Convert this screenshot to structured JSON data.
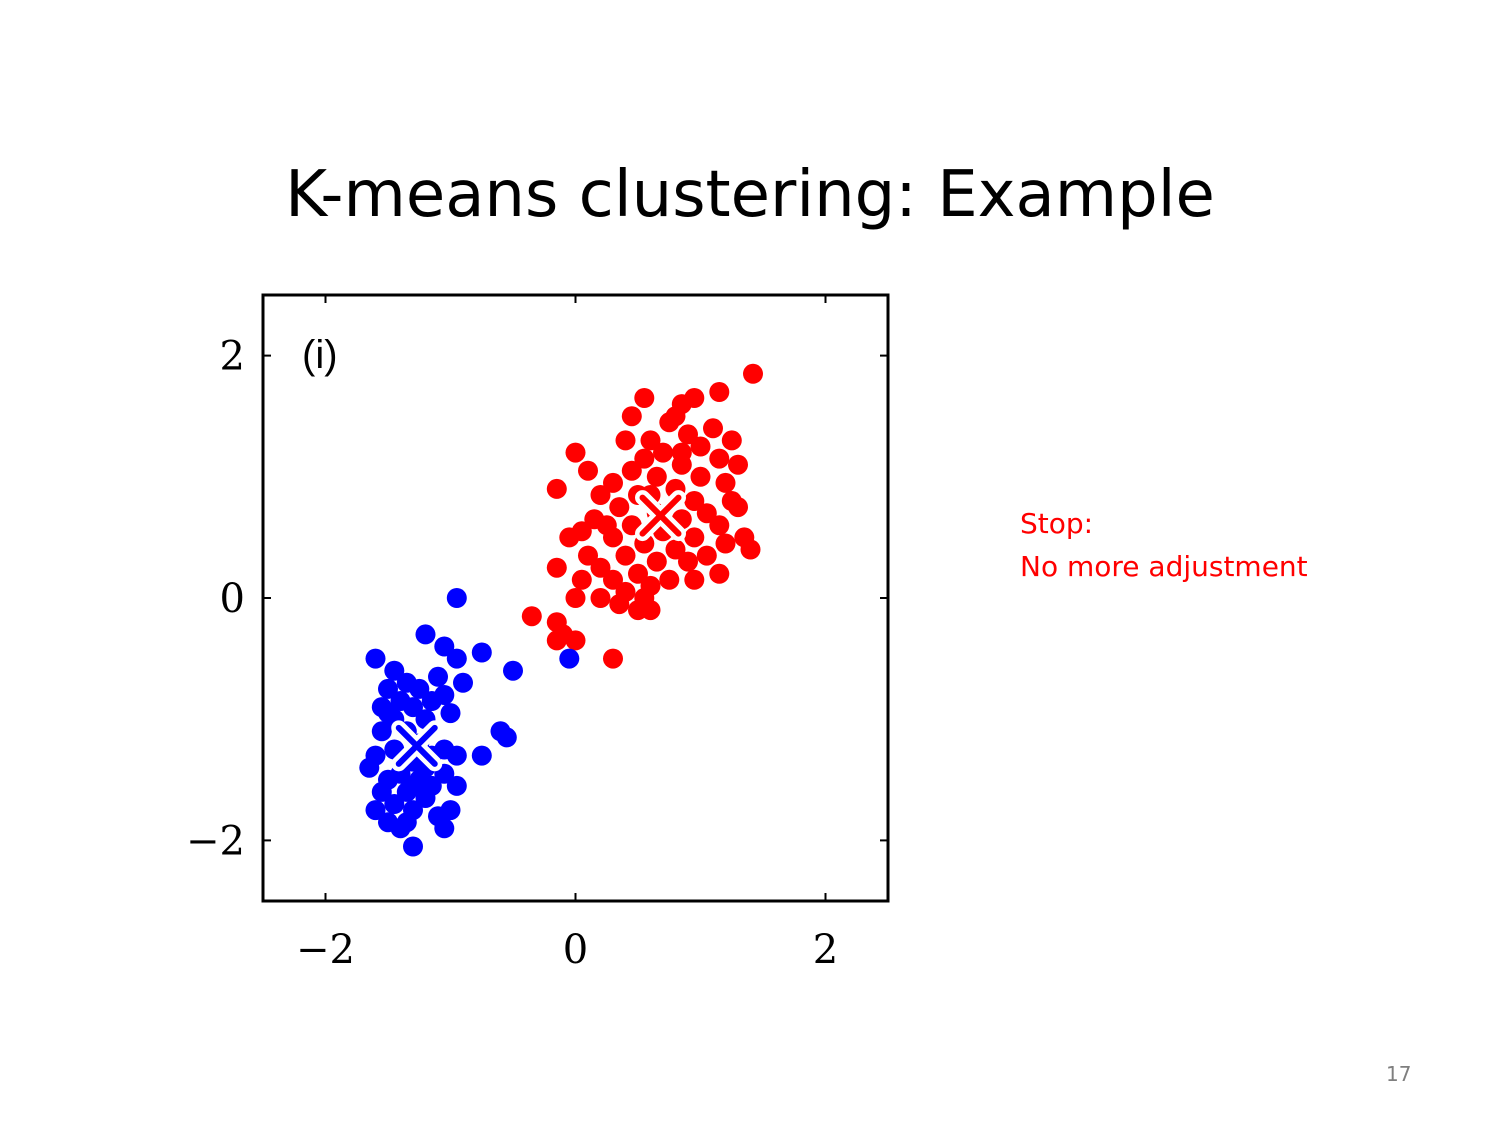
{
  "slide": {
    "title": "K-means clustering: Example",
    "note_line1": "Stop:",
    "note_line2": "No more adjustment",
    "page_number": "17",
    "note_color": "#ff0000"
  },
  "chart_data": {
    "type": "scatter",
    "panel_label": "(i)",
    "title": "",
    "xlabel": "",
    "ylabel": "",
    "xlim": [
      -2.5,
      2.5
    ],
    "ylim": [
      -2.5,
      2.5
    ],
    "xticks": [
      -2,
      0,
      2
    ],
    "yticks": [
      -2,
      0,
      2
    ],
    "xtick_labels": [
      "−2",
      "0",
      "2"
    ],
    "ytick_labels": [
      "−2",
      "0",
      "2"
    ],
    "grid": false,
    "series": [
      {
        "color": "#ff0000",
        "marker": "dot",
        "points": [
          [
            1.42,
            1.85
          ],
          [
            1.15,
            1.7
          ],
          [
            0.95,
            1.65
          ],
          [
            0.85,
            1.6
          ],
          [
            0.55,
            1.65
          ],
          [
            0.8,
            1.5
          ],
          [
            0.45,
            1.5
          ],
          [
            1.1,
            1.4
          ],
          [
            0.75,
            1.45
          ],
          [
            0.6,
            1.3
          ],
          [
            1.25,
            1.3
          ],
          [
            0.9,
            1.35
          ],
          [
            1.0,
            1.25
          ],
          [
            0.4,
            1.3
          ],
          [
            0.7,
            1.2
          ],
          [
            1.15,
            1.15
          ],
          [
            0.55,
            1.15
          ],
          [
            0.0,
            1.2
          ],
          [
            1.3,
            1.1
          ],
          [
            0.85,
            1.1
          ],
          [
            0.45,
            1.05
          ],
          [
            0.1,
            1.05
          ],
          [
            1.0,
            1.0
          ],
          [
            0.65,
            1.0
          ],
          [
            0.3,
            0.95
          ],
          [
            -0.15,
            0.9
          ],
          [
            1.2,
            0.95
          ],
          [
            0.8,
            0.9
          ],
          [
            0.5,
            0.85
          ],
          [
            0.2,
            0.85
          ],
          [
            0.95,
            0.8
          ],
          [
            1.25,
            0.8
          ],
          [
            0.35,
            0.75
          ],
          [
            0.65,
            0.7
          ],
          [
            1.05,
            0.7
          ],
          [
            0.15,
            0.65
          ],
          [
            0.85,
            0.65
          ],
          [
            0.45,
            0.6
          ],
          [
            1.15,
            0.6
          ],
          [
            0.05,
            0.55
          ],
          [
            0.7,
            0.55
          ],
          [
            0.95,
            0.5
          ],
          [
            -0.05,
            0.5
          ],
          [
            0.3,
            0.5
          ],
          [
            1.2,
            0.45
          ],
          [
            0.55,
            0.45
          ],
          [
            0.8,
            0.4
          ],
          [
            1.4,
            0.4
          ],
          [
            0.1,
            0.35
          ],
          [
            0.4,
            0.35
          ],
          [
            1.05,
            0.35
          ],
          [
            0.65,
            0.3
          ],
          [
            0.9,
            0.3
          ],
          [
            0.2,
            0.25
          ],
          [
            -0.15,
            0.25
          ],
          [
            1.15,
            0.2
          ],
          [
            0.5,
            0.2
          ],
          [
            0.75,
            0.15
          ],
          [
            0.3,
            0.15
          ],
          [
            0.05,
            0.15
          ],
          [
            0.95,
            0.15
          ],
          [
            0.6,
            0.1
          ],
          [
            0.4,
            0.05
          ],
          [
            0.2,
            0.0
          ],
          [
            0.0,
            0.0
          ],
          [
            0.55,
            0.0
          ],
          [
            0.35,
            -0.05
          ],
          [
            0.5,
            -0.1
          ],
          [
            0.6,
            -0.1
          ],
          [
            -0.35,
            -0.15
          ],
          [
            -0.15,
            -0.2
          ],
          [
            -0.1,
            -0.3
          ],
          [
            0.0,
            -0.35
          ],
          [
            -0.15,
            -0.35
          ],
          [
            0.3,
            -0.5
          ],
          [
            1.35,
            0.5
          ],
          [
            1.3,
            0.75
          ],
          [
            0.25,
            0.6
          ],
          [
            0.85,
            1.2
          ],
          [
            0.6,
            0.85
          ]
        ]
      },
      {
        "color": "#0000ff",
        "marker": "dot",
        "points": [
          [
            -0.95,
            0.0
          ],
          [
            -1.2,
            -0.3
          ],
          [
            -1.05,
            -0.4
          ],
          [
            -0.75,
            -0.45
          ],
          [
            -1.6,
            -0.5
          ],
          [
            -0.95,
            -0.5
          ],
          [
            -0.5,
            -0.6
          ],
          [
            -1.45,
            -0.6
          ],
          [
            -1.1,
            -0.65
          ],
          [
            -1.35,
            -0.7
          ],
          [
            -0.9,
            -0.7
          ],
          [
            -1.5,
            -0.75
          ],
          [
            -1.25,
            -0.75
          ],
          [
            -1.05,
            -0.8
          ],
          [
            -1.4,
            -0.85
          ],
          [
            -1.15,
            -0.85
          ],
          [
            -1.55,
            -0.9
          ],
          [
            -1.3,
            -0.9
          ],
          [
            -1.0,
            -0.95
          ],
          [
            -1.45,
            -1.0
          ],
          [
            -1.2,
            -1.0
          ],
          [
            -0.6,
            -1.1
          ],
          [
            -1.55,
            -1.1
          ],
          [
            -1.35,
            -1.1
          ],
          [
            -0.55,
            -1.15
          ],
          [
            -1.25,
            -1.2
          ],
          [
            -1.05,
            -1.25
          ],
          [
            -1.45,
            -1.25
          ],
          [
            -1.6,
            -1.3
          ],
          [
            -1.15,
            -1.3
          ],
          [
            -0.95,
            -1.3
          ],
          [
            -0.75,
            -1.3
          ],
          [
            -1.3,
            -1.35
          ],
          [
            -1.65,
            -1.4
          ],
          [
            -1.2,
            -1.4
          ],
          [
            -1.4,
            -1.45
          ],
          [
            -1.05,
            -1.45
          ],
          [
            -1.5,
            -1.5
          ],
          [
            -1.3,
            -1.55
          ],
          [
            -1.15,
            -1.55
          ],
          [
            -0.95,
            -1.55
          ],
          [
            -1.55,
            -1.6
          ],
          [
            -1.35,
            -1.6
          ],
          [
            -1.2,
            -1.65
          ],
          [
            -1.45,
            -1.7
          ],
          [
            -1.0,
            -1.75
          ],
          [
            -1.6,
            -1.75
          ],
          [
            -1.3,
            -1.75
          ],
          [
            -1.1,
            -1.8
          ],
          [
            -1.5,
            -1.85
          ],
          [
            -1.35,
            -1.85
          ],
          [
            -1.05,
            -1.9
          ],
          [
            -1.4,
            -1.9
          ],
          [
            -1.3,
            -2.05
          ],
          [
            -0.05,
            -0.5
          ],
          [
            -1.5,
            -0.95
          ],
          [
            -1.25,
            -1.5
          ]
        ]
      }
    ],
    "centroids": [
      {
        "x": 0.68,
        "y": 0.68,
        "color": "#ff0000"
      },
      {
        "x": -1.27,
        "y": -1.22,
        "color": "#0000ff"
      }
    ]
  }
}
